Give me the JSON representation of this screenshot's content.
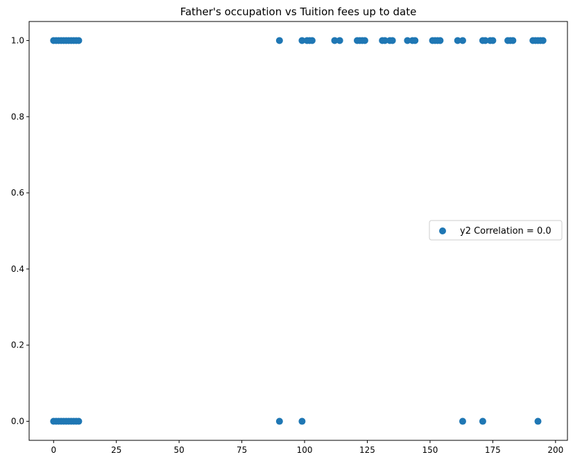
{
  "chart_data": {
    "type": "scatter",
    "title": "Father's occupation vs Tuition fees up to date",
    "xlabel": "",
    "ylabel": "",
    "xlim": [
      -9.75,
      204.75
    ],
    "ylim": [
      -0.05,
      1.05
    ],
    "xticks": [
      0,
      25,
      50,
      75,
      100,
      125,
      150,
      175,
      200
    ],
    "yticks": [
      0.0,
      0.2,
      0.4,
      0.6,
      0.8,
      1.0
    ],
    "xtick_labels": [
      "0",
      "25",
      "50",
      "75",
      "100",
      "125",
      "150",
      "175",
      "200"
    ],
    "ytick_labels": [
      "0.0",
      "0.2",
      "0.4",
      "0.6",
      "0.8",
      "1.0"
    ],
    "grid": false,
    "legend_position": "center-right",
    "series": [
      {
        "name": "y2 Correlation = 0.0",
        "color": "#1f77b4",
        "points": [
          [
            0,
            1
          ],
          [
            1,
            1
          ],
          [
            2,
            1
          ],
          [
            3,
            1
          ],
          [
            4,
            1
          ],
          [
            5,
            1
          ],
          [
            6,
            1
          ],
          [
            7,
            1
          ],
          [
            8,
            1
          ],
          [
            9,
            1
          ],
          [
            10,
            1
          ],
          [
            0,
            0
          ],
          [
            1,
            0
          ],
          [
            2,
            0
          ],
          [
            3,
            0
          ],
          [
            4,
            0
          ],
          [
            5,
            0
          ],
          [
            6,
            0
          ],
          [
            7,
            0
          ],
          [
            8,
            0
          ],
          [
            9,
            0
          ],
          [
            10,
            0
          ],
          [
            90,
            1
          ],
          [
            90,
            0
          ],
          [
            99,
            1
          ],
          [
            99,
            0
          ],
          [
            101,
            1
          ],
          [
            102,
            1
          ],
          [
            103,
            1
          ],
          [
            112,
            1
          ],
          [
            114,
            1
          ],
          [
            121,
            1
          ],
          [
            122,
            1
          ],
          [
            123,
            1
          ],
          [
            124,
            1
          ],
          [
            131,
            1
          ],
          [
            132,
            1
          ],
          [
            134,
            1
          ],
          [
            135,
            1
          ],
          [
            141,
            1
          ],
          [
            143,
            1
          ],
          [
            144,
            1
          ],
          [
            151,
            1
          ],
          [
            152,
            1
          ],
          [
            153,
            1
          ],
          [
            154,
            1
          ],
          [
            161,
            1
          ],
          [
            163,
            1
          ],
          [
            163,
            0
          ],
          [
            171,
            1
          ],
          [
            171,
            0
          ],
          [
            172,
            1
          ],
          [
            174,
            1
          ],
          [
            175,
            1
          ],
          [
            181,
            1
          ],
          [
            182,
            1
          ],
          [
            183,
            1
          ],
          [
            191,
            1
          ],
          [
            192,
            1
          ],
          [
            193,
            1
          ],
          [
            193,
            0
          ],
          [
            194,
            1
          ],
          [
            195,
            1
          ]
        ]
      }
    ]
  }
}
